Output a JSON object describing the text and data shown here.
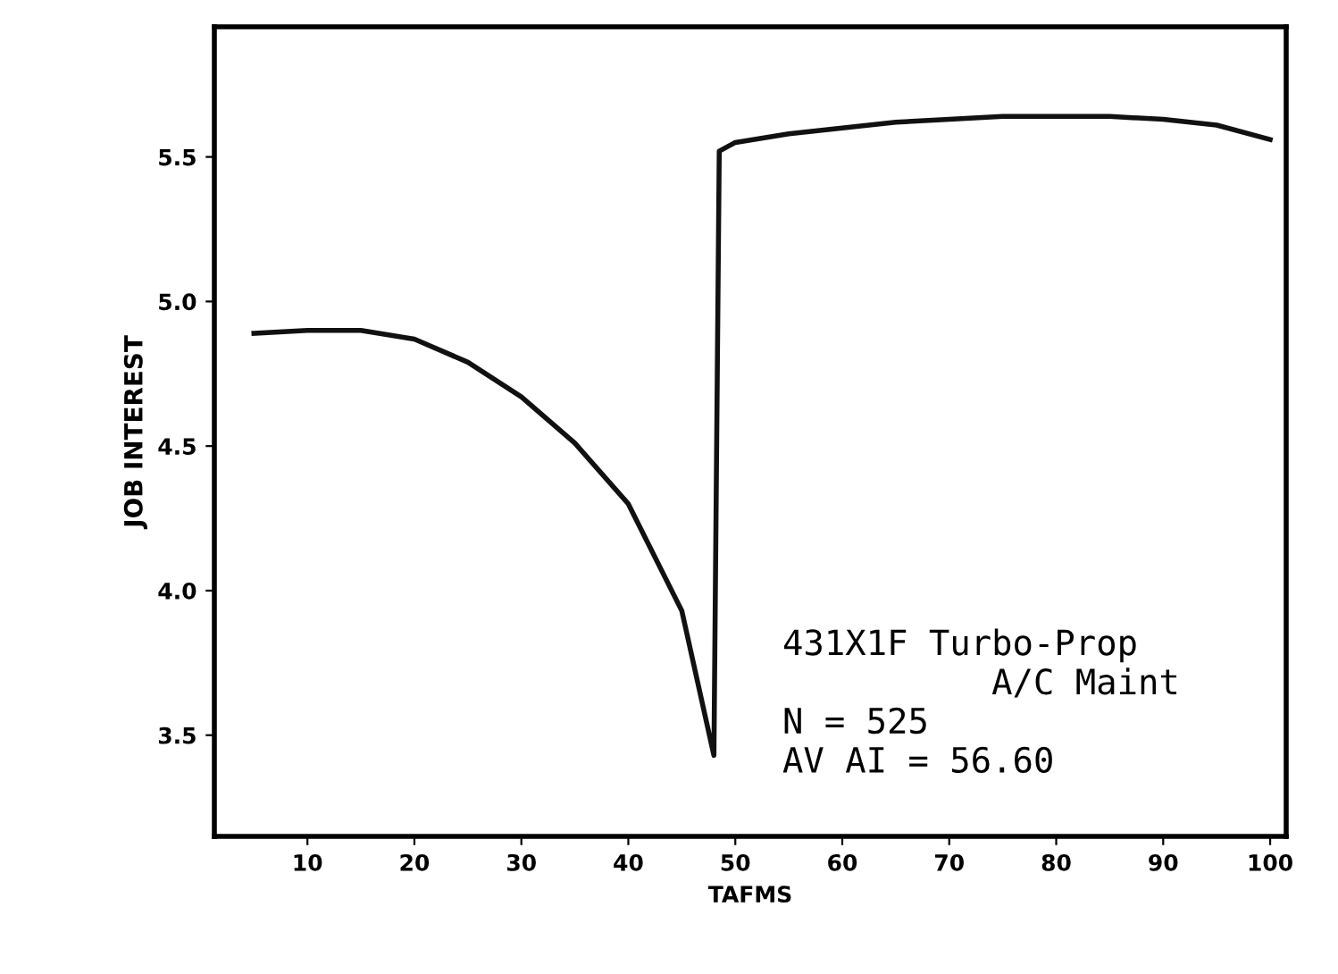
{
  "chart_data": {
    "type": "line",
    "xlabel": "TAFMS",
    "ylabel": "JOB INTEREST",
    "x": [
      5,
      10,
      15,
      20,
      25,
      30,
      35,
      40,
      45,
      48,
      48.5,
      50,
      55,
      60,
      65,
      70,
      75,
      80,
      85,
      90,
      95,
      100
    ],
    "series": [
      {
        "color": "#111111",
        "values": [
          4.89,
          4.9,
          4.9,
          4.87,
          4.79,
          4.67,
          4.51,
          4.3,
          3.93,
          3.43,
          5.52,
          5.55,
          5.58,
          5.6,
          5.62,
          5.63,
          5.64,
          5.64,
          5.64,
          5.63,
          5.61,
          5.56
        ]
      }
    ],
    "xlim": [
      1.3,
      101.5
    ],
    "ylim": [
      3.15,
      5.95
    ],
    "xticks": [
      10,
      20,
      30,
      40,
      50,
      60,
      70,
      80,
      90,
      100
    ],
    "yticks": [
      3.5,
      {
        "value": 4,
        "label": "4.0"
      },
      4.5,
      {
        "value": 5,
        "label": "5.0"
      },
      5.5
    ],
    "annotations": [
      "431X1F Turbo-Prop\n          A/C Maint\nN = 525\nAV AI = 56.60"
    ],
    "grid": false,
    "legend": false,
    "marker": "none",
    "line_style": "solid"
  }
}
